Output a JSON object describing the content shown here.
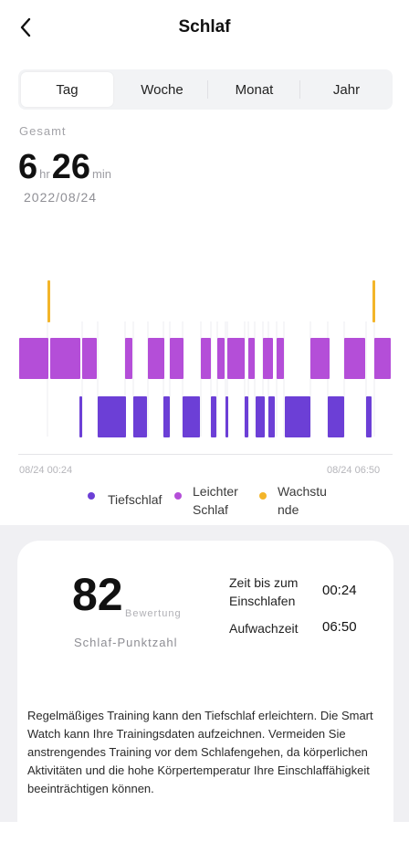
{
  "header": {
    "title": "Schlaf"
  },
  "tabs": [
    {
      "label": "Tag",
      "active": true
    },
    {
      "label": "Woche",
      "active": false
    },
    {
      "label": "Monat",
      "active": false
    },
    {
      "label": "Jahr",
      "active": false
    }
  ],
  "summary": {
    "label": "Gesamt",
    "hours": "6",
    "hours_unit": "hr",
    "minutes": "26",
    "minutes_unit": "min",
    "date": "2022/08/24"
  },
  "chart": {
    "x_start_label": "08/24 00:24",
    "x_end_label": "08/24 06:50",
    "colors": {
      "deep": "#6c3fd6",
      "light": "#b44ed8",
      "awake": "#f3b52a"
    }
  },
  "legend": [
    {
      "label": "Tiefschlaf",
      "color": "#6c3fd6"
    },
    {
      "label": "Leichter Schlaf",
      "color": "#b44ed8"
    },
    {
      "label": "Wachstunde",
      "color": "#f3b52a"
    }
  ],
  "score_card": {
    "score": "82",
    "score_unit": "Bewertung",
    "score_label": "Schlaf-Punktzahl",
    "rows": [
      {
        "label": "Zeit bis zum Einschlafen",
        "value": "00:24"
      },
      {
        "label": "Aufwachzeit",
        "value": "06:50"
      }
    ],
    "advice": "Regelmäßiges Training kann den Tiefschlaf erleichtern. Die Smart Watch kann Ihre Trainingsdaten aufzeichnen. Vermeiden Sie anstrengendes Training vor dem Schlafengehen, da körperlichen Aktivitäten und die hohe Körpertemperatur Ihre Einschlaffähigkeit beeinträchtigen können."
  }
}
